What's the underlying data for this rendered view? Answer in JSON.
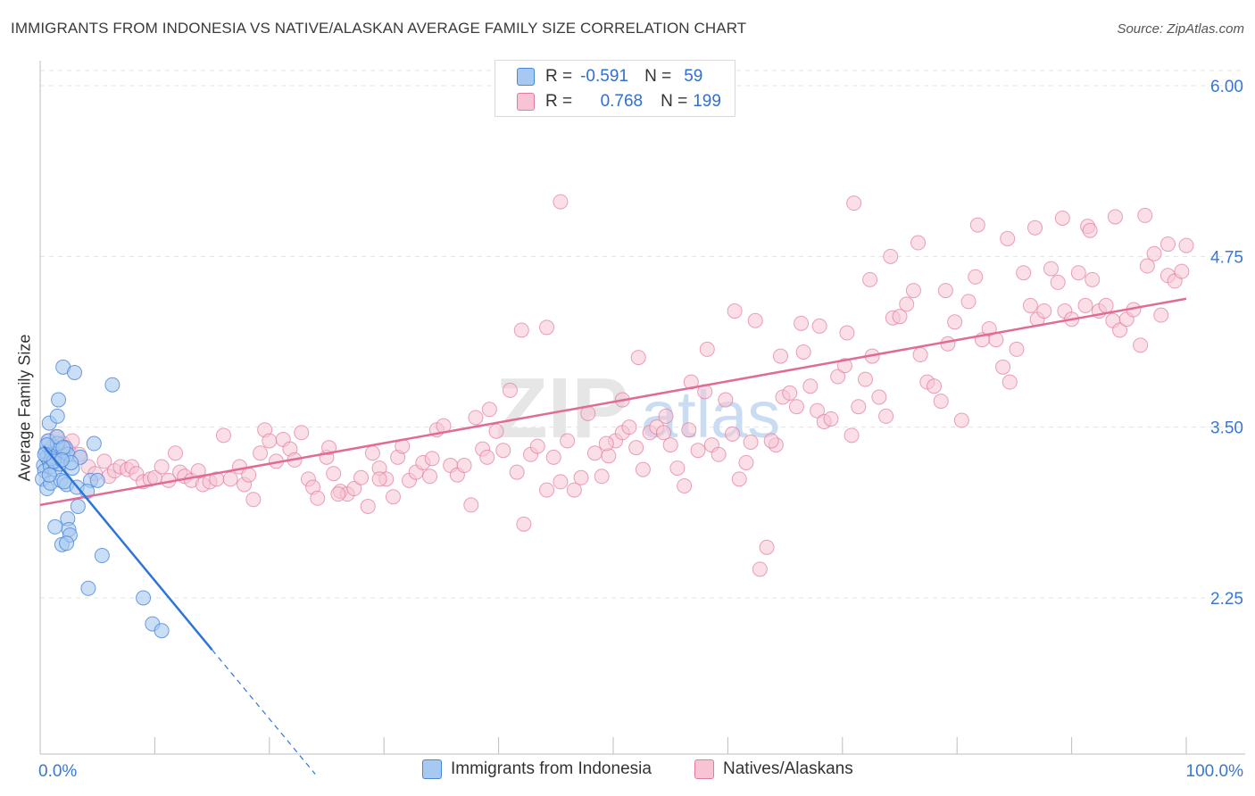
{
  "header": {
    "title": "IMMIGRANTS FROM INDONESIA VS NATIVE/ALASKAN AVERAGE FAMILY SIZE CORRELATION CHART",
    "source": "Source: ZipAtlas.com"
  },
  "legend": {
    "r_label": "R =",
    "n_label": "N =",
    "series": [
      {
        "name": "Immigrants from Indonesia",
        "r": "-0.591",
        "n": "59",
        "color": "#a7c8f0",
        "stroke": "#4a86d8"
      },
      {
        "name": "Natives/Alaskans",
        "r": "0.768",
        "n": "199",
        "color": "#f8c4d4",
        "stroke": "#e07a9e"
      }
    ]
  },
  "watermark": {
    "zip": "ZIP",
    "atlas": "atlas"
  },
  "colors": {
    "blue_line": "#2f75d8",
    "pink_line": "#e06b96",
    "tick_label": "#3a77d1",
    "grid": "#e3e3e3"
  },
  "chart_data": {
    "type": "scatter",
    "xlabel": "",
    "ylabel": "Average Family Size",
    "xlim": [
      0,
      100
    ],
    "ylim": [
      1.0,
      6.1
    ],
    "x_tick_labels": {
      "0": "0.0%",
      "100": "100.0%"
    },
    "y_ticks": [
      {
        "value": 2.25,
        "label": "2.25"
      },
      {
        "value": 3.5,
        "label": "3.50"
      },
      {
        "value": 4.75,
        "label": "4.75"
      },
      {
        "value": 6.0,
        "label": "6.00"
      }
    ],
    "grid": true,
    "legend_position": "top-center",
    "trendlines": [
      {
        "series": "Immigrants from Indonesia",
        "x": [
          0.3,
          15.0
        ],
        "y": [
          3.36,
          1.87
        ],
        "dashed_extension_to": [
          24.0,
          0.96
        ]
      },
      {
        "series": "Natives/Alaskans",
        "x": [
          0.0,
          100.0
        ],
        "y": [
          2.93,
          4.44
        ]
      }
    ],
    "series": [
      {
        "name": "Immigrants from Indonesia",
        "points": [
          [
            0.3,
            3.22
          ],
          [
            0.5,
            3.32
          ],
          [
            0.6,
            3.28
          ],
          [
            0.8,
            3.24
          ],
          [
            1.0,
            3.31
          ],
          [
            1.1,
            3.36
          ],
          [
            1.2,
            3.27
          ],
          [
            1.4,
            3.3
          ],
          [
            1.6,
            3.33
          ],
          [
            1.8,
            3.26
          ],
          [
            2.0,
            3.29
          ],
          [
            2.2,
            3.35
          ],
          [
            0.4,
            3.18
          ],
          [
            0.7,
            3.4
          ],
          [
            0.9,
            3.21
          ],
          [
            1.3,
            3.19
          ],
          [
            1.5,
            3.38
          ],
          [
            1.7,
            3.23
          ],
          [
            2.4,
            3.3
          ],
          [
            0.2,
            3.12
          ],
          [
            0.6,
            3.05
          ],
          [
            0.9,
            3.09
          ],
          [
            1.5,
            3.43
          ],
          [
            2.0,
            3.35
          ],
          [
            2.8,
            3.2
          ],
          [
            1.8,
            3.11
          ],
          [
            2.3,
            3.08
          ],
          [
            2.1,
            3.1
          ],
          [
            0.8,
            3.53
          ],
          [
            1.5,
            3.58
          ],
          [
            1.6,
            3.7
          ],
          [
            2.0,
            3.94
          ],
          [
            3.0,
            3.9
          ],
          [
            4.7,
            3.38
          ],
          [
            6.3,
            3.81
          ],
          [
            3.5,
            3.28
          ],
          [
            4.4,
            3.11
          ],
          [
            5.0,
            3.11
          ],
          [
            3.2,
            3.06
          ],
          [
            4.1,
            3.03
          ],
          [
            2.4,
            2.83
          ],
          [
            1.3,
            2.77
          ],
          [
            2.5,
            2.75
          ],
          [
            2.6,
            2.71
          ],
          [
            1.9,
            2.64
          ],
          [
            2.3,
            2.65
          ],
          [
            3.3,
            2.92
          ],
          [
            5.4,
            2.56
          ],
          [
            4.2,
            2.32
          ],
          [
            9.0,
            2.25
          ],
          [
            9.8,
            2.06
          ],
          [
            10.6,
            2.01
          ],
          [
            0.6,
            3.37
          ],
          [
            1.0,
            3.27
          ],
          [
            1.2,
            3.25
          ],
          [
            2.7,
            3.24
          ],
          [
            0.4,
            3.3
          ],
          [
            1.9,
            3.26
          ],
          [
            0.8,
            3.15
          ]
        ]
      },
      {
        "name": "Natives/Alaskans",
        "points": [
          [
            0.8,
            3.4
          ],
          [
            1.4,
            3.43
          ],
          [
            2.0,
            3.38
          ],
          [
            2.5,
            3.32
          ],
          [
            2.8,
            3.4
          ],
          [
            3.4,
            3.3
          ],
          [
            4.2,
            3.21
          ],
          [
            4.8,
            3.16
          ],
          [
            5.6,
            3.25
          ],
          [
            6.0,
            3.14
          ],
          [
            6.5,
            3.18
          ],
          [
            7.0,
            3.21
          ],
          [
            7.6,
            3.19
          ],
          [
            8.0,
            3.21
          ],
          [
            8.4,
            3.16
          ],
          [
            9.0,
            3.1
          ],
          [
            9.6,
            3.12
          ],
          [
            10.0,
            3.13
          ],
          [
            10.6,
            3.21
          ],
          [
            11.2,
            3.11
          ],
          [
            11.8,
            3.31
          ],
          [
            12.2,
            3.17
          ],
          [
            12.6,
            3.14
          ],
          [
            13.2,
            3.11
          ],
          [
            13.8,
            3.18
          ],
          [
            14.2,
            3.08
          ],
          [
            14.8,
            3.1
          ],
          [
            15.4,
            3.12
          ],
          [
            16.0,
            3.44
          ],
          [
            16.6,
            3.12
          ],
          [
            17.4,
            3.21
          ],
          [
            17.8,
            3.08
          ],
          [
            18.2,
            3.15
          ],
          [
            18.6,
            2.97
          ],
          [
            19.2,
            3.31
          ],
          [
            19.6,
            3.48
          ],
          [
            20.0,
            3.4
          ],
          [
            20.6,
            3.25
          ],
          [
            21.2,
            3.41
          ],
          [
            21.8,
            3.34
          ],
          [
            22.2,
            3.26
          ],
          [
            22.8,
            3.46
          ],
          [
            23.4,
            3.12
          ],
          [
            23.8,
            3.06
          ],
          [
            24.2,
            2.98
          ],
          [
            25.0,
            3.28
          ],
          [
            25.6,
            3.16
          ],
          [
            26.2,
            3.03
          ],
          [
            26.8,
            3.01
          ],
          [
            27.4,
            3.05
          ],
          [
            26.0,
            3.01
          ],
          [
            28.0,
            3.13
          ],
          [
            28.6,
            2.92
          ],
          [
            29.0,
            3.31
          ],
          [
            29.6,
            3.2
          ],
          [
            30.2,
            3.12
          ],
          [
            30.8,
            2.99
          ],
          [
            31.2,
            3.28
          ],
          [
            31.6,
            3.36
          ],
          [
            32.2,
            3.11
          ],
          [
            32.8,
            3.17
          ],
          [
            33.4,
            3.24
          ],
          [
            34.0,
            3.14
          ],
          [
            34.6,
            3.48
          ],
          [
            35.2,
            3.51
          ],
          [
            35.8,
            3.22
          ],
          [
            36.4,
            3.15
          ],
          [
            37.0,
            3.22
          ],
          [
            37.6,
            2.93
          ],
          [
            38.0,
            3.57
          ],
          [
            38.6,
            3.34
          ],
          [
            39.0,
            3.28
          ],
          [
            39.8,
            3.47
          ],
          [
            40.4,
            3.33
          ],
          [
            41.0,
            3.77
          ],
          [
            41.6,
            3.17
          ],
          [
            42.2,
            2.79
          ],
          [
            42.8,
            3.3
          ],
          [
            43.4,
            3.36
          ],
          [
            44.2,
            3.04
          ],
          [
            44.8,
            3.28
          ],
          [
            45.4,
            3.1
          ],
          [
            46.0,
            3.4
          ],
          [
            46.6,
            3.04
          ],
          [
            47.2,
            3.13
          ],
          [
            47.8,
            3.6
          ],
          [
            48.4,
            3.31
          ],
          [
            49.0,
            3.14
          ],
          [
            49.6,
            3.29
          ],
          [
            50.2,
            3.4
          ],
          [
            50.8,
            3.46
          ],
          [
            51.4,
            3.5
          ],
          [
            52.0,
            3.35
          ],
          [
            52.6,
            3.19
          ],
          [
            53.2,
            3.46
          ],
          [
            53.8,
            3.5
          ],
          [
            54.4,
            3.46
          ],
          [
            55.0,
            3.37
          ],
          [
            55.6,
            3.2
          ],
          [
            56.2,
            3.07
          ],
          [
            56.8,
            3.83
          ],
          [
            57.4,
            3.33
          ],
          [
            58.0,
            3.76
          ],
          [
            58.6,
            3.37
          ],
          [
            59.2,
            3.3
          ],
          [
            59.8,
            3.7
          ],
          [
            60.4,
            3.45
          ],
          [
            61.0,
            3.12
          ],
          [
            61.6,
            3.24
          ],
          [
            62.0,
            3.39
          ],
          [
            62.8,
            2.46
          ],
          [
            63.4,
            2.62
          ],
          [
            64.2,
            3.37
          ],
          [
            64.8,
            3.72
          ],
          [
            65.4,
            3.75
          ],
          [
            66.0,
            3.65
          ],
          [
            66.6,
            4.05
          ],
          [
            67.2,
            3.8
          ],
          [
            67.8,
            3.62
          ],
          [
            68.4,
            3.54
          ],
          [
            69.0,
            3.56
          ],
          [
            69.6,
            3.87
          ],
          [
            70.2,
            3.95
          ],
          [
            70.8,
            3.44
          ],
          [
            71.4,
            3.65
          ],
          [
            72.0,
            3.85
          ],
          [
            72.6,
            4.02
          ],
          [
            73.2,
            3.72
          ],
          [
            73.8,
            3.58
          ],
          [
            74.4,
            4.3
          ],
          [
            75.0,
            4.31
          ],
          [
            75.6,
            4.4
          ],
          [
            76.2,
            4.5
          ],
          [
            76.8,
            4.03
          ],
          [
            77.4,
            3.83
          ],
          [
            78.0,
            3.8
          ],
          [
            78.6,
            3.69
          ],
          [
            79.2,
            4.11
          ],
          [
            79.8,
            4.27
          ],
          [
            80.4,
            3.55
          ],
          [
            81.0,
            4.42
          ],
          [
            81.6,
            4.6
          ],
          [
            82.2,
            4.14
          ],
          [
            82.8,
            4.22
          ],
          [
            83.4,
            4.14
          ],
          [
            84.0,
            3.94
          ],
          [
            84.6,
            3.83
          ],
          [
            85.2,
            4.07
          ],
          [
            85.8,
            4.63
          ],
          [
            86.4,
            4.39
          ],
          [
            87.0,
            4.29
          ],
          [
            87.6,
            4.35
          ],
          [
            88.2,
            4.66
          ],
          [
            88.8,
            4.56
          ],
          [
            89.4,
            4.35
          ],
          [
            90.0,
            4.29
          ],
          [
            90.6,
            4.63
          ],
          [
            91.2,
            4.39
          ],
          [
            91.8,
            4.58
          ],
          [
            92.4,
            4.35
          ],
          [
            93.0,
            4.39
          ],
          [
            93.6,
            4.28
          ],
          [
            94.2,
            4.21
          ],
          [
            94.8,
            4.29
          ],
          [
            95.4,
            4.36
          ],
          [
            96.0,
            4.1
          ],
          [
            96.6,
            4.68
          ],
          [
            97.2,
            4.77
          ],
          [
            97.8,
            4.32
          ],
          [
            98.4,
            4.61
          ],
          [
            99.0,
            4.57
          ],
          [
            99.6,
            4.64
          ],
          [
            42.0,
            4.21
          ],
          [
            44.2,
            4.23
          ],
          [
            50.8,
            3.7
          ],
          [
            52.2,
            4.01
          ],
          [
            54.6,
            3.58
          ],
          [
            58.2,
            4.07
          ],
          [
            60.6,
            4.35
          ],
          [
            62.4,
            4.28
          ],
          [
            64.6,
            4.02
          ],
          [
            66.4,
            4.26
          ],
          [
            68.0,
            4.24
          ],
          [
            70.4,
            4.19
          ],
          [
            72.4,
            4.58
          ],
          [
            74.2,
            4.75
          ],
          [
            76.6,
            4.85
          ],
          [
            79.0,
            4.5
          ],
          [
            81.8,
            4.98
          ],
          [
            84.4,
            4.88
          ],
          [
            86.8,
            4.96
          ],
          [
            89.2,
            5.03
          ],
          [
            91.4,
            4.97
          ],
          [
            93.8,
            5.04
          ],
          [
            96.4,
            5.05
          ],
          [
            98.4,
            4.84
          ],
          [
            100.0,
            4.83
          ],
          [
            45.4,
            5.15
          ],
          [
            71.0,
            5.14
          ],
          [
            91.6,
            4.94
          ],
          [
            29.6,
            3.12
          ],
          [
            25.2,
            3.35
          ],
          [
            34.2,
            3.27
          ],
          [
            63.8,
            3.4
          ],
          [
            49.4,
            3.38
          ],
          [
            39.2,
            3.63
          ],
          [
            56.6,
            3.48
          ]
        ]
      }
    ]
  }
}
